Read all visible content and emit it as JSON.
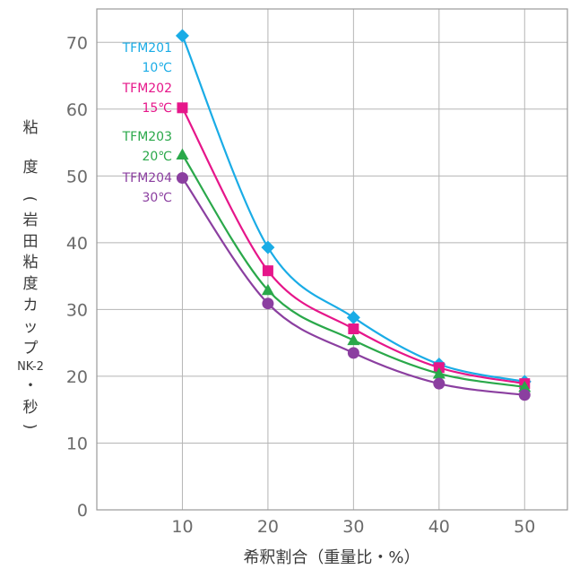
{
  "chart_data": {
    "type": "line",
    "xlabel": "希釈割合（重量比・%）",
    "ylabel_lines": [
      "粘",
      "度",
      "(",
      "岩",
      "田",
      "粘",
      "度",
      "カ",
      "ッ",
      "プ",
      "NK-2",
      "・",
      "秒",
      ")"
    ],
    "xlim": [
      0,
      55
    ],
    "ylim": [
      0,
      75
    ],
    "x_ticks": [
      "10",
      "20",
      "30",
      "40",
      "50"
    ],
    "y_ticks": [
      "0",
      "10",
      "20",
      "30",
      "40",
      "50",
      "60",
      "70"
    ],
    "grid": true,
    "x": [
      10,
      20,
      30,
      40,
      50
    ],
    "series": [
      {
        "name": "TFM201",
        "temp": "10℃",
        "color": "#1aace6",
        "marker": "diamond",
        "values": [
          71,
          39.3,
          28.8,
          21.8,
          19.2
        ]
      },
      {
        "name": "TFM202",
        "temp": "15℃",
        "color": "#e6168a",
        "marker": "square",
        "values": [
          60.2,
          35.8,
          27.1,
          21.3,
          18.9
        ]
      },
      {
        "name": "TFM203",
        "temp": "20℃",
        "color": "#2aa84a",
        "marker": "triangle",
        "values": [
          53.2,
          32.9,
          25.4,
          20.4,
          18.4
        ]
      },
      {
        "name": "TFM204",
        "temp": "30℃",
        "color": "#8b3fa0",
        "marker": "circle",
        "values": [
          49.7,
          30.9,
          23.5,
          18.9,
          17.2
        ]
      }
    ]
  }
}
